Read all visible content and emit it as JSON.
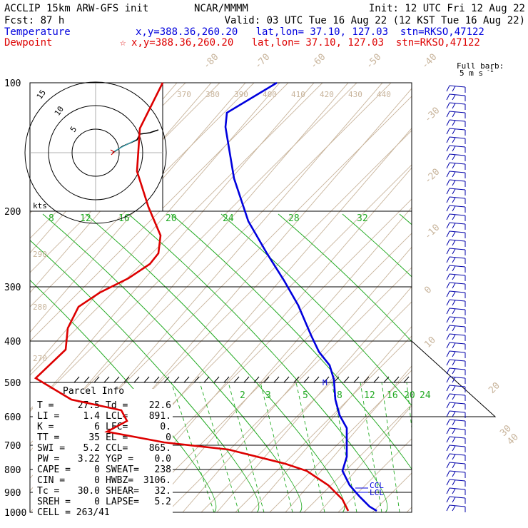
{
  "header": {
    "line1_left": "ACCLIP 15km ARW-GFS init",
    "line1_center": "NCAR/MMMM",
    "line1_right": "Init: 12 UTC Fri 12 Aug 22",
    "line2_left": "Fcst:   87 h",
    "line2_right": "Valid: 03 UTC Tue 16 Aug 22 (12 KST Tue 16 Aug 22)",
    "temp_label": "Temperature",
    "temp_info": "x,y=388.36,260.20   lat,lon= 37.10, 127.03  stn=RKSO,47122",
    "dew_label": "Dewpoint",
    "dew_marker": "☆",
    "dew_info": "x,y=388.36,260.20   lat,lon= 37.10, 127.03  stn=RKSO,47122",
    "barb_legend_1": "Full barb:",
    "barb_legend_2": "5 m s",
    "barb_legend_sup": "-1",
    "colors": {
      "temperature": "#0000dd",
      "dewpoint": "#dd0000",
      "mixing": "#22aa22",
      "isotherm": "#c8b49b"
    }
  },
  "chart_data": {
    "type": "line",
    "pressure_labels": [
      "100",
      "200",
      "300",
      "400",
      "500",
      "600",
      "700",
      "800",
      "900",
      "1000"
    ],
    "isotherm_labels": [
      "-80",
      "-70",
      "-60",
      "-50",
      "-40",
      "-30",
      "-20",
      "-10",
      "0",
      "10",
      "20",
      "30",
      "40"
    ],
    "theta_labels": [
      "370",
      "380",
      "390",
      "400",
      "410",
      "420",
      "430",
      "440"
    ],
    "theta_left_labels": [
      "290",
      "280",
      "270"
    ],
    "mixing_ratio_upper": [
      "8",
      "12",
      "16",
      "20",
      "24",
      "28",
      "32"
    ],
    "mixing_ratio_lower": [
      "2",
      "3",
      "5",
      "8",
      "12",
      "16",
      "20",
      "24"
    ],
    "hodograph_ring_labels": [
      "15",
      "10",
      "5"
    ],
    "hodograph_unit": "kts",
    "series": [
      {
        "name": "Temperature",
        "points": [
          [
            388,
            116
          ],
          [
            318,
            158
          ],
          [
            316,
            178
          ],
          [
            328,
            250
          ],
          [
            348,
            310
          ],
          [
            374,
            355
          ],
          [
            398,
            393
          ],
          [
            418,
            428
          ],
          [
            436,
            470
          ],
          [
            447,
            493
          ],
          [
            462,
            512
          ],
          [
            468,
            532
          ],
          [
            470,
            560
          ],
          [
            476,
            582
          ],
          [
            486,
            600
          ],
          [
            486,
            640
          ],
          [
            480,
            660
          ],
          [
            490,
            680
          ],
          [
            504,
            696
          ],
          [
            518,
            710
          ],
          [
            528,
            716
          ]
        ]
      },
      {
        "name": "Dewpoint",
        "points": [
          [
            228,
            116
          ],
          [
            196,
            180
          ],
          [
            192,
            240
          ],
          [
            208,
            290
          ],
          [
            225,
            330
          ],
          [
            222,
            355
          ],
          [
            210,
            370
          ],
          [
            180,
            390
          ],
          [
            140,
            410
          ],
          [
            110,
            430
          ],
          [
            95,
            460
          ],
          [
            92,
            490
          ],
          [
            50,
            530
          ],
          [
            100,
            560
          ],
          [
            170,
            575
          ],
          [
            178,
            590
          ],
          [
            150,
            605
          ],
          [
            230,
            620
          ],
          [
            320,
            630
          ],
          [
            400,
            650
          ],
          [
            430,
            660
          ],
          [
            460,
            680
          ],
          [
            480,
            700
          ],
          [
            488,
            716
          ]
        ]
      }
    ],
    "level_markers": [
      "M",
      "CCL",
      "LCL"
    ],
    "parcel_info": {
      "title": "Parcel Info",
      "rows": [
        {
          "k1": "T  =",
          "v1": "27.5",
          "k2": "Td =",
          "v2": "22.6"
        },
        {
          "k1": "LI =",
          "v1": "1.4",
          "k2": "LCL=",
          "v2": "891."
        },
        {
          "k1": "K  =",
          "v1": "6",
          "k2": "LFC=",
          "v2": "0."
        },
        {
          "k1": "TT =",
          "v1": "35",
          "k2": "EL =",
          "v2": "0"
        },
        {
          "k1": "SWI =",
          "v1": "5.2",
          "k2": "CCL=",
          "v2": "865."
        },
        {
          "k1": "PW =",
          "v1": "3.22",
          "k2": "YGP =",
          "v2": "0.0"
        },
        {
          "k1": "CAPE =",
          "v1": "0",
          "k2": "SWEAT=",
          "v2": "238"
        },
        {
          "k1": "CIN =",
          "v1": "0",
          "k2": "HWBZ=",
          "v2": "3106."
        },
        {
          "k1": "Tc =",
          "v1": "30.0",
          "k2": "SHEAR=",
          "v2": "32."
        },
        {
          "k1": "SREH =",
          "v1": "0",
          "k2": "LAPSE=",
          "v2": "5.2"
        }
      ],
      "cell": "CELL = 263/41"
    }
  }
}
